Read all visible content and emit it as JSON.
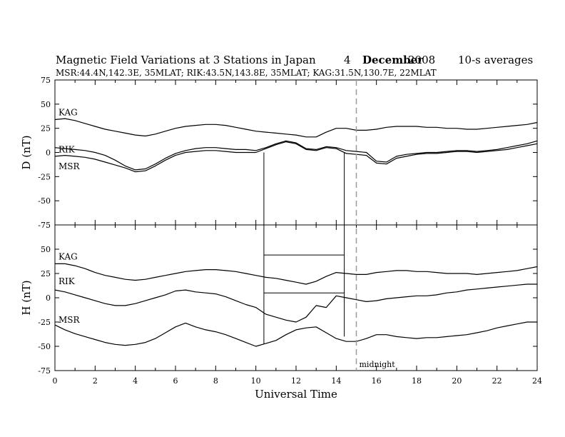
{
  "header": {
    "title": "Magnetic Field Variations at 3 Stations in Japan",
    "day": "4",
    "month": "December",
    "year": "2008",
    "averaging": "10-s averages",
    "subtitle": "MSR:44.4N,142.3E, 35MLAT;  RIK:43.5N,143.8E, 35MLAT;  KAG:31.5N,130.7E, 22MLAT"
  },
  "chart_data": [
    {
      "id": "declination",
      "type": "line",
      "ylabel": "D (nT)",
      "ylim": [
        -75,
        75
      ],
      "yticks": [
        75,
        50,
        25,
        0,
        -25,
        -50,
        -75
      ],
      "xlim": [
        0,
        24
      ],
      "series": [
        {
          "name": "KAG",
          "x": [
            0,
            0.5,
            1,
            1.5,
            2,
            2.5,
            3,
            3.5,
            4,
            4.5,
            5,
            5.5,
            6,
            6.5,
            7,
            7.5,
            8,
            8.5,
            9,
            9.5,
            10,
            10.5,
            11,
            11.5,
            12,
            12.5,
            13,
            13.5,
            14,
            14.5,
            15,
            15.5,
            16,
            16.5,
            17,
            17.5,
            18,
            18.5,
            19,
            19.5,
            20,
            20.5,
            21,
            21.5,
            22,
            22.5,
            23,
            23.5,
            24
          ],
          "y": [
            34,
            35,
            33,
            30,
            27,
            24,
            22,
            20,
            18,
            17,
            19,
            22,
            25,
            27,
            28,
            29,
            29,
            28,
            26,
            24,
            22,
            21,
            20,
            19,
            18,
            16,
            16,
            21,
            25,
            25,
            23,
            23,
            24,
            26,
            27,
            27,
            27,
            26,
            26,
            25,
            25,
            24,
            24,
            25,
            26,
            27,
            28,
            29,
            31
          ]
        },
        {
          "name": "RIK",
          "x": [
            0,
            0.5,
            1,
            1.5,
            2,
            2.5,
            3,
            3.5,
            4,
            4.5,
            5,
            5.5,
            6,
            6.5,
            7,
            7.5,
            8,
            8.5,
            9,
            9.5,
            10,
            10.5,
            11,
            11.5,
            12,
            12.5,
            13,
            13.5,
            14,
            14.5,
            15,
            15.5,
            16,
            16.5,
            17,
            17.5,
            18,
            18.5,
            19,
            19.5,
            20,
            20.5,
            21,
            21.5,
            22,
            22.5,
            23,
            23.5,
            24
          ],
          "y": [
            5,
            4,
            3,
            2,
            0,
            -3,
            -8,
            -14,
            -18,
            -17,
            -12,
            -6,
            -1,
            2,
            4,
            5,
            5,
            4,
            3,
            3,
            2,
            5,
            9,
            12,
            10,
            4,
            3,
            6,
            5,
            2,
            1,
            0,
            -9,
            -10,
            -4,
            -2,
            -1,
            0,
            0,
            1,
            2,
            2,
            1,
            2,
            3,
            5,
            7,
            9,
            12
          ]
        },
        {
          "name": "MSR",
          "x": [
            0,
            0.5,
            1,
            1.5,
            2,
            2.5,
            3,
            3.5,
            4,
            4.5,
            5,
            5.5,
            6,
            6.5,
            7,
            7.5,
            8,
            8.5,
            9,
            9.5,
            10,
            10.5,
            11,
            11.5,
            12,
            12.5,
            13,
            13.5,
            14,
            14.5,
            15,
            15.5,
            16,
            16.5,
            17,
            17.5,
            18,
            18.5,
            19,
            19.5,
            20,
            20.5,
            21,
            21.5,
            22,
            22.5,
            23,
            23.5,
            24
          ],
          "y": [
            -4,
            -3,
            -4,
            -5,
            -7,
            -10,
            -13,
            -16,
            -20,
            -19,
            -14,
            -8,
            -3,
            0,
            1,
            2,
            2,
            1,
            0,
            0,
            0,
            4,
            8,
            11,
            9,
            3,
            2,
            5,
            4,
            -1,
            -2,
            -3,
            -11,
            -12,
            -6,
            -4,
            -2,
            -1,
            -1,
            0,
            1,
            1,
            0,
            1,
            2,
            3,
            5,
            7,
            9
          ]
        }
      ]
    },
    {
      "id": "horizontal",
      "type": "line",
      "ylabel": "H (nT)",
      "ylim": [
        -75,
        75
      ],
      "yticks": [
        50,
        25,
        0,
        -25,
        -50,
        -75
      ],
      "xlim": [
        0,
        24
      ],
      "xlabel": "Universal Time",
      "xticks": [
        0,
        2,
        4,
        6,
        8,
        10,
        12,
        14,
        16,
        18,
        20,
        22,
        24
      ],
      "series": [
        {
          "name": "KAG",
          "x": [
            0,
            0.5,
            1,
            1.5,
            2,
            2.5,
            3,
            3.5,
            4,
            4.5,
            5,
            5.5,
            6,
            6.5,
            7,
            7.5,
            8,
            8.5,
            9,
            9.5,
            10,
            10.5,
            11,
            11.5,
            12,
            12.5,
            13,
            13.5,
            14,
            14.5,
            15,
            15.5,
            16,
            16.5,
            17,
            17.5,
            18,
            18.5,
            19,
            19.5,
            20,
            20.5,
            21,
            21.5,
            22,
            22.5,
            23,
            23.5,
            24
          ],
          "y": [
            35,
            35,
            33,
            30,
            26,
            23,
            21,
            19,
            18,
            19,
            21,
            23,
            25,
            27,
            28,
            29,
            29,
            28,
            27,
            25,
            23,
            21,
            20,
            18,
            16,
            14,
            17,
            22,
            26,
            25,
            24,
            24,
            26,
            27,
            28,
            28,
            27,
            27,
            26,
            25,
            25,
            25,
            24,
            25,
            26,
            27,
            28,
            30,
            32
          ]
        },
        {
          "name": "RIK",
          "x": [
            0,
            0.5,
            1,
            1.5,
            2,
            2.5,
            3,
            3.5,
            4,
            4.5,
            5,
            5.5,
            6,
            6.5,
            7,
            7.5,
            8,
            8.5,
            9,
            9.5,
            10,
            10.5,
            11,
            11.5,
            12,
            12.5,
            13,
            13.5,
            14,
            14.5,
            15,
            15.5,
            16,
            16.5,
            17,
            17.5,
            18,
            18.5,
            19,
            19.5,
            20,
            20.5,
            21,
            21.5,
            22,
            22.5,
            23,
            23.5,
            24
          ],
          "y": [
            8,
            6,
            3,
            0,
            -3,
            -6,
            -8,
            -8,
            -6,
            -3,
            0,
            3,
            7,
            8,
            6,
            5,
            4,
            1,
            -3,
            -7,
            -10,
            -17,
            -20,
            -23,
            -25,
            -20,
            -8,
            -10,
            2,
            0,
            -2,
            -4,
            -3,
            -1,
            0,
            1,
            2,
            2,
            3,
            5,
            6,
            8,
            9,
            10,
            11,
            12,
            13,
            14,
            14
          ]
        },
        {
          "name": "MSR",
          "x": [
            0,
            0.5,
            1,
            1.5,
            2,
            2.5,
            3,
            3.5,
            4,
            4.5,
            5,
            5.5,
            6,
            6.5,
            7,
            7.5,
            8,
            8.5,
            9,
            9.5,
            10,
            10.5,
            11,
            11.5,
            12,
            12.5,
            13,
            13.5,
            14,
            14.5,
            15,
            15.5,
            16,
            16.5,
            17,
            17.5,
            18,
            18.5,
            19,
            19.5,
            20,
            20.5,
            21,
            21.5,
            22,
            22.5,
            23,
            23.5,
            24
          ],
          "y": [
            -28,
            -33,
            -37,
            -40,
            -43,
            -46,
            -48,
            -49,
            -48,
            -46,
            -42,
            -36,
            -30,
            -26,
            -30,
            -33,
            -35,
            -38,
            -42,
            -46,
            -50,
            -47,
            -44,
            -38,
            -33,
            -31,
            -30,
            -36,
            -42,
            -45,
            -45,
            -42,
            -38,
            -38,
            -40,
            -41,
            -42,
            -41,
            -41,
            -40,
            -39,
            -38,
            -36,
            -34,
            -31,
            -29,
            -27,
            -25,
            -25
          ]
        }
      ]
    }
  ],
  "annotations": {
    "midnight_label": "midnight",
    "midnight_x": 15,
    "event_window": {
      "start": 10.4,
      "end": 14.4
    },
    "step_offsets_H": [
      44,
      5
    ]
  }
}
